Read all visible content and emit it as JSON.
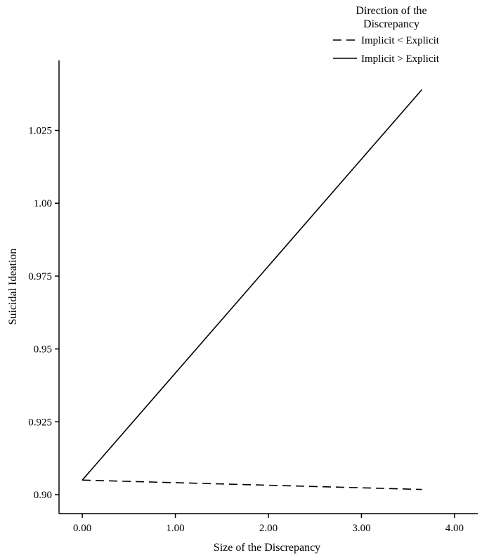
{
  "chart_data": {
    "type": "line",
    "xlabel": "Size of the Discrepancy",
    "ylabel": "Suicidal Ideation",
    "xlim": [
      -0.25,
      4.25
    ],
    "ylim": [
      0.8935,
      1.049
    ],
    "x_ticks": [
      0,
      1,
      2,
      3,
      4
    ],
    "x_tick_labels": [
      "0.00",
      "1.00",
      "2.00",
      "3.00",
      "4.00"
    ],
    "y_ticks": [
      0.9,
      0.925,
      0.95,
      0.975,
      1.0,
      1.025
    ],
    "y_tick_labels": [
      "0.90",
      "0.925",
      "0.95",
      "0.975",
      "1.00",
      "1.025"
    ],
    "grid": false,
    "legend": {
      "title_line1": "Direction of the",
      "title_line2": "Discrepancy",
      "placement": "top-right, outside plot"
    },
    "series": [
      {
        "name": "Implicit < Explicit",
        "style": "dashed",
        "color": "#000000",
        "x": [
          0.0,
          3.65
        ],
        "y": [
          0.905,
          0.9018
        ]
      },
      {
        "name": "Implicit > Explicit",
        "style": "solid",
        "color": "#000000",
        "x": [
          0.0,
          3.65
        ],
        "y": [
          0.905,
          1.039
        ]
      }
    ]
  }
}
